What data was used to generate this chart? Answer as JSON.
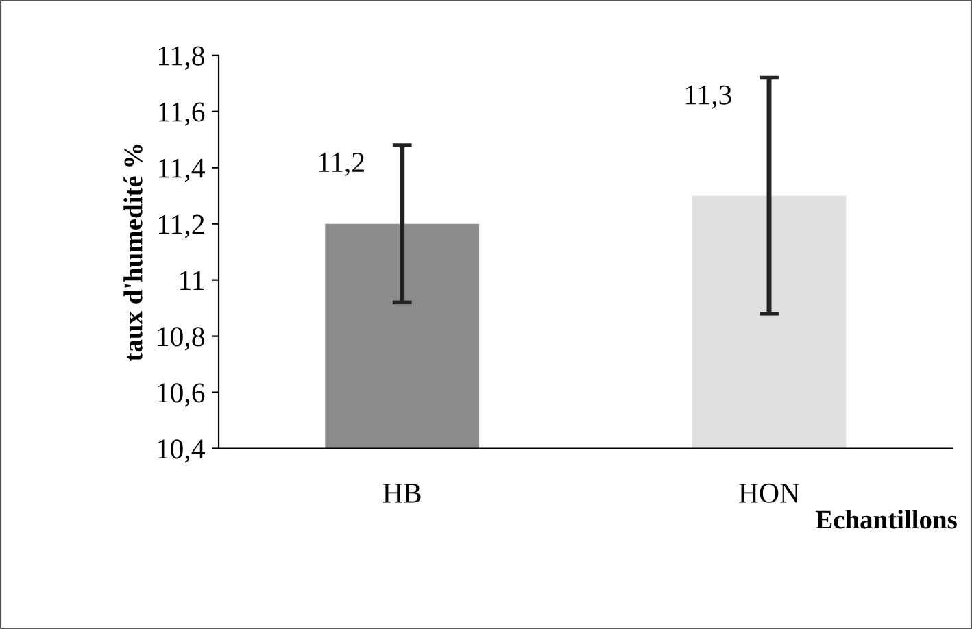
{
  "chart_data": {
    "type": "bar",
    "ylabel": "taux d'humedité %",
    "xlabel": "Echantillons",
    "categories": [
      "HB",
      "HON"
    ],
    "series": [
      {
        "values": [
          11.2,
          11.3
        ],
        "colors": [
          "#8c8c8c",
          "#e0e0e0"
        ],
        "errors": [
          0.28,
          0.42
        ],
        "value_labels": [
          "11,2",
          "11,3"
        ]
      }
    ],
    "ylim": [
      10.4,
      11.8
    ],
    "yticks": [
      {
        "value": 10.4,
        "label": "10,4"
      },
      {
        "value": 10.6,
        "label": "10,6"
      },
      {
        "value": 10.8,
        "label": "10,8"
      },
      11,
      {
        "value": 11.2,
        "label": "11,2"
      },
      {
        "value": 11.4,
        "label": "11,4"
      },
      {
        "value": 11.6,
        "label": "11,6"
      },
      {
        "value": 11.8,
        "label": "11,8"
      }
    ],
    "grid": false,
    "legend": false
  }
}
